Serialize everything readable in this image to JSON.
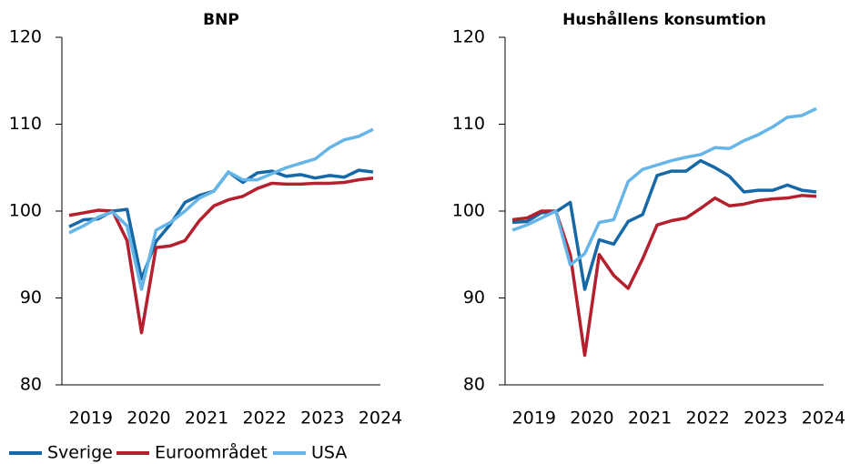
{
  "chart_data": [
    {
      "type": "line",
      "title": "BNP",
      "categories": [
        null,
        "2019",
        null,
        null,
        null,
        "2020",
        null,
        null,
        null,
        "2021",
        null,
        null,
        null,
        "2022",
        null,
        null,
        null,
        "2023",
        null,
        null,
        null,
        "2024"
      ],
      "series": [
        {
          "name": "Sverige",
          "color": "#1668a6",
          "values": [
            98.2,
            99,
            99.1,
            100,
            100.2,
            92.2,
            96.5,
            98.5,
            101,
            101.8,
            102.3,
            104.5,
            103.3,
            104.4,
            104.6,
            104,
            104.2,
            103.8,
            104.1,
            103.9,
            104.7,
            104.5
          ]
        },
        {
          "name": "Euroområdet",
          "color": "#b5202e",
          "values": [
            99.5,
            99.8,
            100.1,
            100,
            96.6,
            86,
            95.8,
            96,
            96.6,
            98.9,
            100.6,
            101.3,
            101.7,
            102.6,
            103.2,
            103.1,
            103.1,
            103.2,
            103.2,
            103.3,
            103.6,
            103.8
          ]
        },
        {
          "name": "USA",
          "color": "#66b5e8",
          "values": [
            97.5,
            98.3,
            99.3,
            99.9,
            98.3,
            91,
            97.8,
            98.7,
            100,
            101.5,
            102.3,
            104.5,
            103.6,
            103.6,
            104.3,
            105,
            105.5,
            106,
            107.3,
            108.2,
            108.6,
            109.4
          ]
        }
      ],
      "ylim": [
        80,
        120
      ],
      "yticks": [
        80,
        90,
        100,
        110,
        120
      ]
    },
    {
      "type": "line",
      "title": "Hushållens konsumtion",
      "categories": [
        null,
        "2019",
        null,
        null,
        null,
        "2020",
        null,
        null,
        null,
        "2021",
        null,
        null,
        null,
        "2022",
        null,
        null,
        null,
        "2023",
        null,
        null,
        null,
        "2024"
      ],
      "series": [
        {
          "name": "Sverige",
          "color": "#1668a6",
          "values": [
            98.7,
            98.8,
            99.8,
            99.9,
            101,
            91,
            96.7,
            96.2,
            98.8,
            99.6,
            104.1,
            104.6,
            104.6,
            105.8,
            105,
            104,
            102.2,
            102.4,
            102.4,
            103,
            102.4,
            102.2
          ]
        },
        {
          "name": "Euroområdet",
          "color": "#b5202e",
          "values": [
            99,
            99.2,
            100,
            100,
            95,
            83.4,
            95,
            92.6,
            91.1,
            94.5,
            98.4,
            98.9,
            99.2,
            100.3,
            101.5,
            100.6,
            100.8,
            101.2,
            101.4,
            101.5,
            101.8,
            101.7
          ]
        },
        {
          "name": "USA",
          "color": "#66b5e8",
          "values": [
            97.8,
            98.4,
            99.2,
            100,
            93.8,
            95.1,
            98.7,
            99,
            103.4,
            104.8,
            105.3,
            105.8,
            106.2,
            106.5,
            107.3,
            107.2,
            108.1,
            108.8,
            109.7,
            110.8,
            111,
            111.8
          ]
        }
      ],
      "ylim": [
        80,
        120
      ],
      "yticks": [
        80,
        90,
        100,
        110,
        120
      ]
    }
  ]
}
